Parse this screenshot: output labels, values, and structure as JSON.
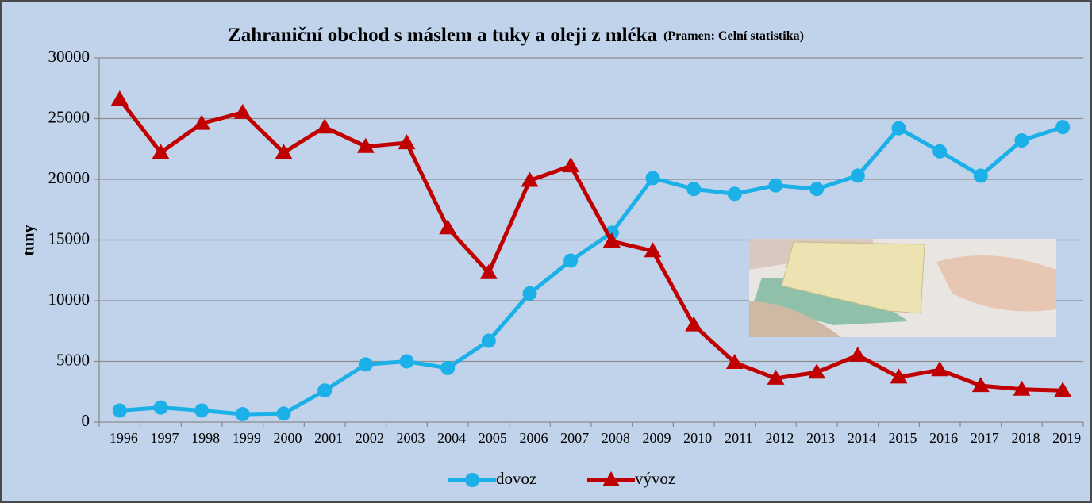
{
  "chart_data": {
    "type": "line",
    "title": "Zahraniční obchod s máslem a tuky a oleji z mléka",
    "subtitle": "(Pramen: Celní statistika)",
    "y_label": "tuny",
    "categories": [
      "1996",
      "1997",
      "1998",
      "1999",
      "2000",
      "2001",
      "2002",
      "2003",
      "2004",
      "2005",
      "2006",
      "2007",
      "2008",
      "2009",
      "2010",
      "2011",
      "2012",
      "2013",
      "2014",
      "2015",
      "2016",
      "2017",
      "2018",
      "2019"
    ],
    "series": [
      {
        "name": "dovoz",
        "color": "#1cb0e8",
        "marker": "circle",
        "values": [
          950,
          1200,
          950,
          650,
          700,
          2600,
          4750,
          5000,
          4450,
          6700,
          10600,
          13300,
          15600,
          20100,
          19200,
          18800,
          19500,
          19200,
          20300,
          24200,
          22300,
          20300,
          23200,
          24300
        ]
      },
      {
        "name": "vývoz",
        "color": "#c00000",
        "marker": "triangle",
        "values": [
          26600,
          22200,
          24600,
          25500,
          22200,
          24300,
          22700,
          23000,
          16000,
          12300,
          19900,
          21100,
          14900,
          14100,
          8000,
          4900,
          3600,
          4100,
          5500,
          3700,
          4300,
          3000,
          2700,
          2600
        ]
      }
    ],
    "ylim": [
      0,
      30000
    ],
    "yticks": [
      0,
      5000,
      10000,
      15000,
      20000,
      25000,
      30000
    ],
    "grid": true,
    "legend": "bottom"
  }
}
